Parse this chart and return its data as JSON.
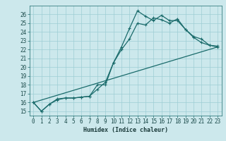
{
  "title": "",
  "xlabel": "Humidex (Indice chaleur)",
  "xlim": [
    -0.5,
    23.5
  ],
  "ylim": [
    14.5,
    27.0
  ],
  "yticks": [
    15,
    16,
    17,
    18,
    19,
    20,
    21,
    22,
    23,
    24,
    25,
    26
  ],
  "xticks": [
    0,
    1,
    2,
    3,
    4,
    5,
    6,
    7,
    8,
    9,
    10,
    11,
    12,
    13,
    14,
    15,
    16,
    17,
    18,
    19,
    20,
    21,
    22,
    23
  ],
  "bg_color": "#cce8ec",
  "grid_color": "#9ecdd4",
  "line_color": "#1a6b6b",
  "line1_x": [
    0,
    1,
    2,
    3,
    4,
    5,
    6,
    7,
    8,
    9,
    10,
    11,
    12,
    13,
    14,
    15,
    16,
    17,
    18,
    19,
    20,
    21,
    22,
    23
  ],
  "line1_y": [
    16.0,
    15.0,
    15.8,
    16.4,
    16.5,
    16.5,
    16.6,
    16.7,
    18.0,
    18.0,
    20.5,
    22.3,
    24.4,
    26.4,
    25.8,
    25.3,
    25.9,
    25.3,
    25.3,
    24.3,
    23.5,
    23.2,
    22.5,
    22.4
  ],
  "line2_x": [
    0,
    1,
    2,
    3,
    4,
    5,
    6,
    7,
    8,
    9,
    10,
    11,
    12,
    13,
    14,
    15,
    16,
    17,
    18,
    19,
    20,
    21,
    22,
    23
  ],
  "line2_y": [
    16.0,
    15.0,
    15.8,
    16.3,
    16.5,
    16.5,
    16.6,
    16.7,
    17.5,
    18.3,
    20.5,
    22.0,
    23.2,
    25.0,
    24.8,
    25.6,
    25.4,
    25.0,
    25.5,
    24.3,
    23.4,
    22.8,
    22.5,
    22.3
  ],
  "line3_x": [
    0,
    23
  ],
  "line3_y": [
    16.0,
    22.3
  ],
  "tick_fontsize": 5.5,
  "xlabel_fontsize": 6.0
}
